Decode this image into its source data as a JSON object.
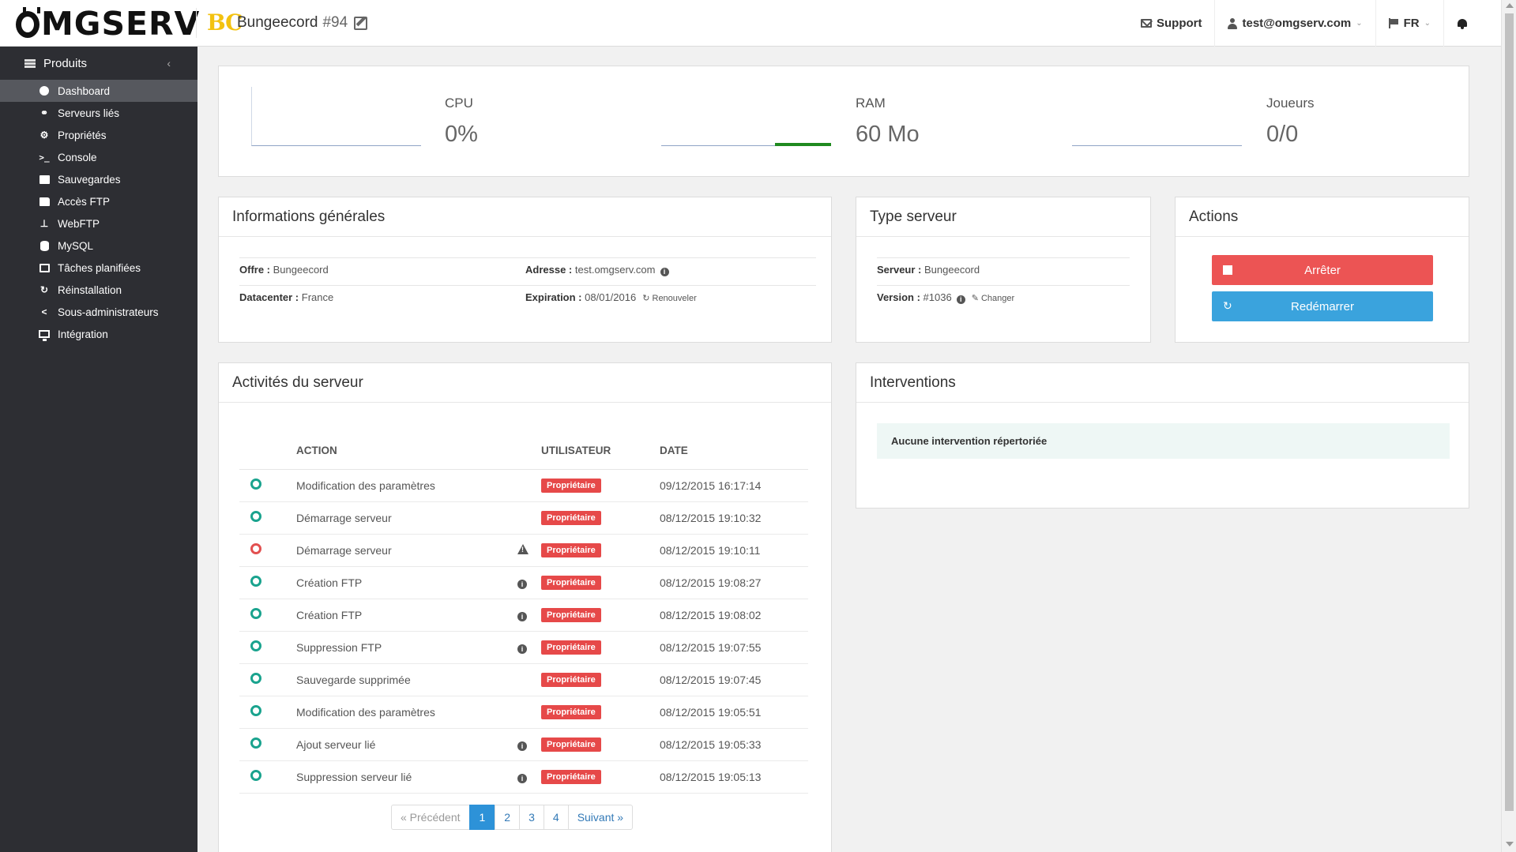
{
  "header": {
    "logo": "MGSERV",
    "bc_badge": "BC",
    "server_name": "Bungeecord",
    "server_num": "#94",
    "support": "Support",
    "user": "test@omgserv.com",
    "lang": "FR"
  },
  "sidebar": {
    "title": "Produits",
    "items": [
      {
        "label": "Dashboard",
        "icon": "dashboard-icon"
      },
      {
        "label": "Serveurs liés",
        "icon": "link-icon"
      },
      {
        "label": "Propriétés",
        "icon": "gear-icon"
      },
      {
        "label": "Console",
        "icon": "terminal-icon"
      },
      {
        "label": "Sauvegardes",
        "icon": "save-icon"
      },
      {
        "label": "Accès FTP",
        "icon": "folder-icon"
      },
      {
        "label": "WebFTP",
        "icon": "sitemap-icon"
      },
      {
        "label": "MySQL",
        "icon": "database-icon"
      },
      {
        "label": "Tâches planifiées",
        "icon": "calendar-icon"
      },
      {
        "label": "Réinstallation",
        "icon": "refresh-icon"
      },
      {
        "label": "Sous-administrateurs",
        "icon": "share-icon"
      },
      {
        "label": "Intégration",
        "icon": "desktop-icon"
      }
    ]
  },
  "stats": {
    "cpu": {
      "label": "CPU",
      "value": "0%"
    },
    "ram": {
      "label": "RAM",
      "value": "60 Mo",
      "fill": 0.33
    },
    "players": {
      "label": "Joueurs",
      "value": "0/0"
    }
  },
  "info": {
    "title": "Informations générales",
    "offer_label": "Offre :",
    "offer": "Bungeecord",
    "address_label": "Adresse :",
    "address": "test.omgserv.com",
    "datacenter_label": "Datacenter :",
    "datacenter": "France",
    "expiration_label": "Expiration :",
    "expiration": "08/01/2016",
    "renew": "Renouveler"
  },
  "type": {
    "title": "Type serveur",
    "server_label": "Serveur :",
    "server": "Bungeecord",
    "version_label": "Version :",
    "version": "#1036",
    "change": "Changer"
  },
  "actions": {
    "title": "Actions",
    "stop": "Arrêter",
    "restart": "Redémarrer",
    "stop_color": "#ec5454",
    "restart_color": "#3aa3dd"
  },
  "activities": {
    "title": "Activités du serveur",
    "headers": [
      "ACTION",
      "UTILISATEUR",
      "DATE"
    ],
    "rows": [
      {
        "status": "ok",
        "action": "Modification des paramètres",
        "icon": "",
        "user": "Propriétaire",
        "date": "09/12/2015 16:17:14"
      },
      {
        "status": "ok",
        "action": "Démarrage serveur",
        "icon": "",
        "user": "Propriétaire",
        "date": "08/12/2015 19:10:32"
      },
      {
        "status": "err",
        "action": "Démarrage serveur",
        "icon": "warning",
        "user": "Propriétaire",
        "date": "08/12/2015 19:10:11"
      },
      {
        "status": "ok",
        "action": "Création FTP",
        "icon": "info",
        "user": "Propriétaire",
        "date": "08/12/2015 19:08:27"
      },
      {
        "status": "ok",
        "action": "Création FTP",
        "icon": "info",
        "user": "Propriétaire",
        "date": "08/12/2015 19:08:02"
      },
      {
        "status": "ok",
        "action": "Suppression FTP",
        "icon": "info",
        "user": "Propriétaire",
        "date": "08/12/2015 19:07:55"
      },
      {
        "status": "ok",
        "action": "Sauvegarde supprimée",
        "icon": "",
        "user": "Propriétaire",
        "date": "08/12/2015 19:07:45"
      },
      {
        "status": "ok",
        "action": "Modification des paramètres",
        "icon": "",
        "user": "Propriétaire",
        "date": "08/12/2015 19:05:51"
      },
      {
        "status": "ok",
        "action": "Ajout serveur lié",
        "icon": "info",
        "user": "Propriétaire",
        "date": "08/12/2015 19:05:33"
      },
      {
        "status": "ok",
        "action": "Suppression serveur lié",
        "icon": "info",
        "user": "Propriétaire",
        "date": "08/12/2015 19:05:13"
      }
    ],
    "pagination": {
      "prev": "« Précédent",
      "pages": [
        "1",
        "2",
        "3",
        "4"
      ],
      "current": "1",
      "next": "Suivant »"
    }
  },
  "interventions": {
    "title": "Interventions",
    "empty": "Aucune intervention répertoriée"
  }
}
